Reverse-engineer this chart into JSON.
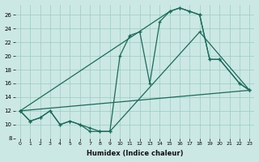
{
  "xlabel": "Humidex (Indice chaleur)",
  "bg_color": "#cce8e4",
  "grid_color": "#99ccc4",
  "line_color": "#1a6b5a",
  "xlim": [
    -0.5,
    23.5
  ],
  "ylim": [
    8,
    27.5
  ],
  "yticks": [
    8,
    10,
    12,
    14,
    16,
    18,
    20,
    22,
    24,
    26
  ],
  "xticks": [
    0,
    1,
    2,
    3,
    4,
    5,
    6,
    7,
    8,
    9,
    10,
    11,
    12,
    13,
    14,
    15,
    16,
    17,
    18,
    19,
    20,
    21,
    22,
    23
  ],
  "lines": [
    {
      "x": [
        0,
        1,
        2,
        3,
        4,
        5,
        6,
        7,
        8,
        9,
        10,
        11,
        12,
        13,
        14,
        15,
        16,
        17,
        18,
        19,
        20,
        22,
        23
      ],
      "y": [
        12,
        10.5,
        11,
        12,
        10,
        10.5,
        10,
        9,
        9,
        9,
        20,
        23,
        23.5,
        16,
        25,
        26.5,
        27,
        26.5,
        26,
        19.5,
        19.5,
        16,
        15
      ],
      "marker": true
    },
    {
      "x": [
        0,
        1,
        2,
        3,
        4,
        5,
        6,
        7,
        8,
        9,
        18,
        23
      ],
      "y": [
        12,
        10.5,
        11,
        12,
        10,
        10.5,
        10,
        9.5,
        9,
        9,
        23.5,
        15
      ],
      "marker": true
    },
    {
      "x": [
        0,
        23
      ],
      "y": [
        12,
        15
      ],
      "marker": false
    },
    {
      "x": [
        0,
        15,
        16,
        17,
        18,
        19,
        20,
        22,
        23
      ],
      "y": [
        12,
        26.5,
        27,
        26.5,
        26,
        19.5,
        19.5,
        16,
        15
      ],
      "marker": true
    }
  ]
}
